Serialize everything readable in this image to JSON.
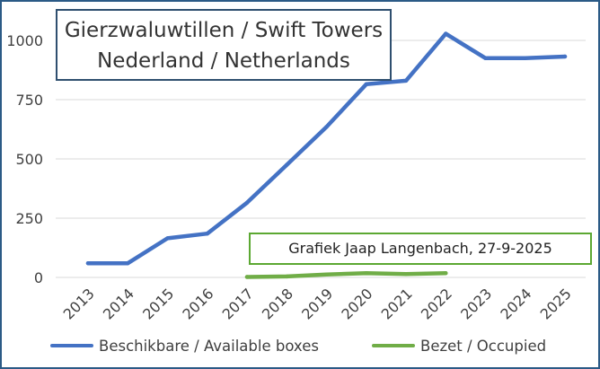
{
  "chart_data": {
    "type": "line",
    "title": "Gierzwaluwtillen / Swift Towers",
    "subtitle": "Nederland / Netherlands",
    "annotation": "Grafiek Jaap Langenbach, 27-9-2025",
    "categories": [
      "2013",
      "2014",
      "2015",
      "2016",
      "2017",
      "2018",
      "2019",
      "2020",
      "2021",
      "2022",
      "2023",
      "2024",
      "2025"
    ],
    "series": [
      {
        "name": "Beschikbare / Available boxes",
        "color": "#4472c4",
        "values": [
          60,
          60,
          165,
          185,
          315,
          475,
          635,
          815,
          830,
          1028,
          925,
          925,
          932
        ]
      },
      {
        "name": "Bezet / Occupied",
        "color": "#70ad47",
        "values": [
          null,
          null,
          null,
          null,
          2,
          4,
          12,
          18,
          14,
          18,
          null,
          null,
          null
        ]
      }
    ],
    "yticks": [
      "0",
      "250",
      "500",
      "750",
      "1000"
    ],
    "ylim": [
      0,
      1050
    ],
    "grid": true,
    "legend_position": "bottom",
    "frame_color": "#2b5a86",
    "gridline_color": "#d9d9d9"
  }
}
